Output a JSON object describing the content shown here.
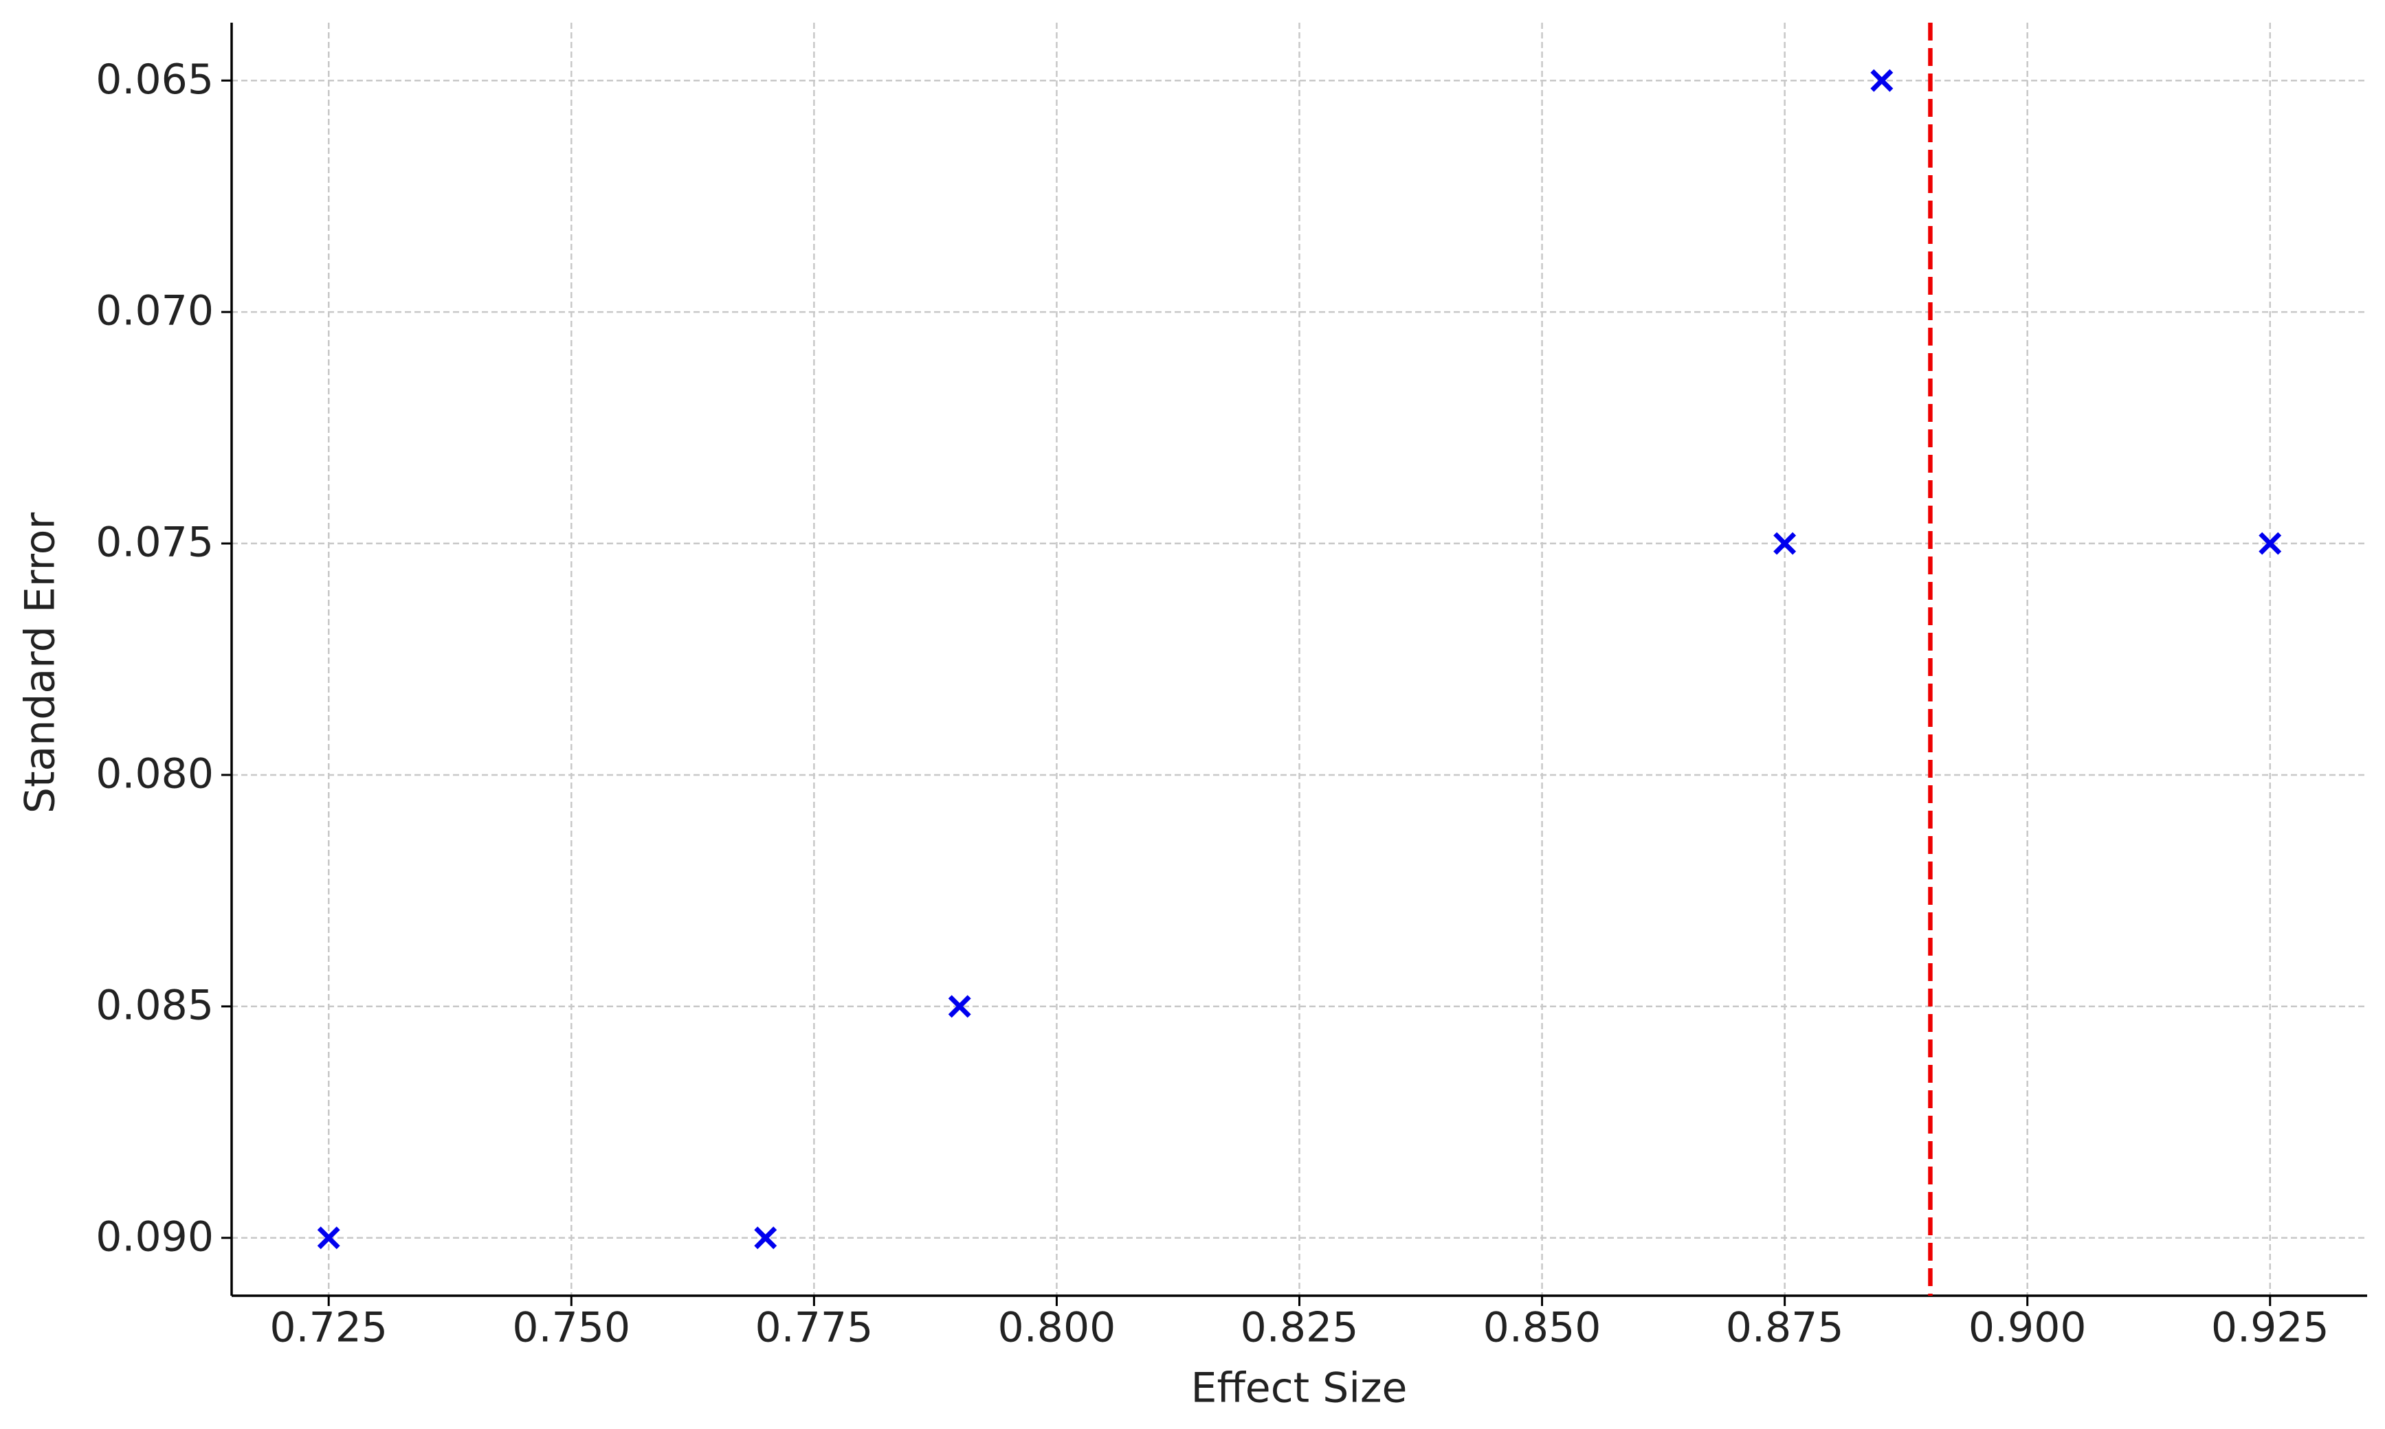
{
  "chart_data": {
    "type": "scatter",
    "x_label": "Effect Size",
    "y_label": "Standard Error",
    "x": [
      0.725,
      0.77,
      0.79,
      0.875,
      0.885,
      0.925
    ],
    "values": [
      0.09,
      0.09,
      0.085,
      0.075,
      0.065,
      0.075
    ],
    "color": "#0000ee",
    "marker": "x",
    "reference_line": {
      "x": 0.89,
      "color": "#ee0000",
      "style": "dashed"
    },
    "xlim": [
      0.715,
      0.935
    ],
    "ylim": [
      0.09125,
      0.06375
    ],
    "xticks": [
      0.725,
      {
        "value": 0.75,
        "label": "0.750"
      },
      0.775,
      {
        "value": 0.8,
        "label": "0.800"
      },
      0.825,
      {
        "value": 0.85,
        "label": "0.850"
      },
      0.875,
      {
        "value": 0.9,
        "label": "0.900"
      },
      0.925
    ],
    "yticks": [
      0.065,
      {
        "value": 0.07,
        "label": "0.070"
      },
      0.075,
      {
        "value": 0.08,
        "label": "0.080"
      },
      0.085,
      {
        "value": 0.09,
        "label": "0.090"
      }
    ],
    "grid": true
  }
}
